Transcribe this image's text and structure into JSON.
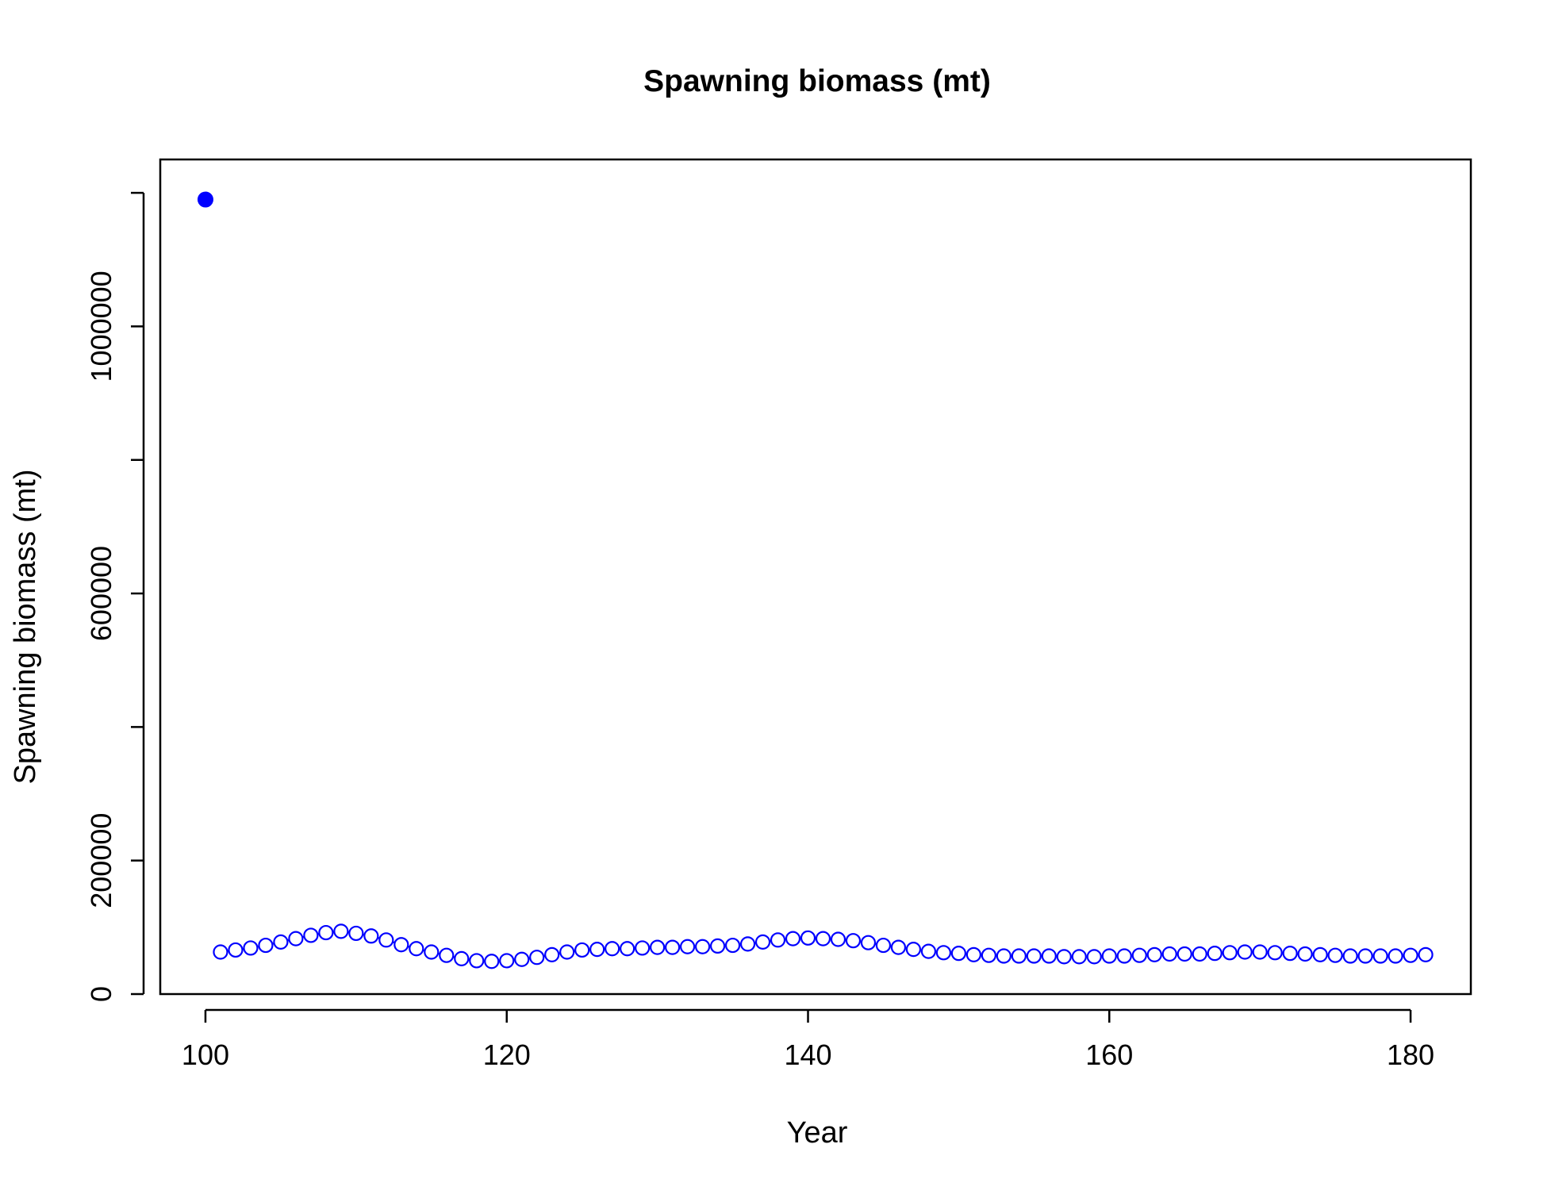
{
  "chart_data": {
    "type": "line",
    "title": "Spawning biomass (mt)",
    "xlabel": "Year",
    "ylabel": "Spawning biomass (mt)",
    "xlim": [
      97,
      184
    ],
    "ylim": [
      0,
      1250000
    ],
    "x_ticks": [
      100,
      120,
      140,
      160,
      180
    ],
    "x_tick_labels": [
      "100",
      "120",
      "140",
      "160",
      "180"
    ],
    "y_ticks": [
      0,
      200000,
      400000,
      600000,
      800000,
      1000000,
      1200000
    ],
    "y_tick_labels": [
      "0",
      "200000",
      "",
      "600000",
      "",
      "1000000",
      ""
    ],
    "grid": false,
    "legend": "none",
    "series": [
      {
        "marker": "filled-circle",
        "color": "#0000ff",
        "x": [
          100
        ],
        "y": [
          1190000
        ]
      },
      {
        "marker": "open-circle",
        "line": true,
        "color": "#0000ff",
        "x": [
          101,
          102,
          103,
          104,
          105,
          106,
          107,
          108,
          109,
          110,
          111,
          112,
          113,
          114,
          115,
          116,
          117,
          118,
          119,
          120,
          121,
          122,
          123,
          124,
          125,
          126,
          127,
          128,
          129,
          130,
          131,
          132,
          133,
          134,
          135,
          136,
          137,
          138,
          139,
          140,
          141,
          142,
          143,
          144,
          145,
          146,
          147,
          148,
          149,
          150,
          151,
          152,
          153,
          154,
          155,
          156,
          157,
          158,
          159,
          160,
          161,
          162,
          163,
          164,
          165,
          166,
          167,
          168,
          169,
          170,
          171,
          172,
          173,
          174,
          175,
          176,
          177,
          178,
          179,
          180,
          181
        ],
        "y": [
          63000,
          66000,
          69000,
          73000,
          78000,
          83000,
          88000,
          92000,
          94000,
          91000,
          87000,
          81000,
          74000,
          68000,
          63000,
          58000,
          53000,
          50000,
          49000,
          50000,
          52000,
          55000,
          59000,
          63000,
          66000,
          67000,
          68000,
          68000,
          69000,
          70000,
          70000,
          71000,
          71000,
          72000,
          73000,
          75000,
          78000,
          81000,
          83000,
          84000,
          83000,
          82000,
          80000,
          77000,
          73000,
          70000,
          67000,
          64000,
          62000,
          61000,
          59000,
          58000,
          57000,
          57000,
          57000,
          57000,
          56000,
          56000,
          56000,
          57000,
          57000,
          58000,
          59000,
          60000,
          60000,
          60000,
          61000,
          62000,
          63000,
          63000,
          62000,
          61000,
          60000,
          59000,
          58000,
          57000,
          57000,
          57000,
          57000,
          58000,
          59000
        ]
      }
    ]
  }
}
